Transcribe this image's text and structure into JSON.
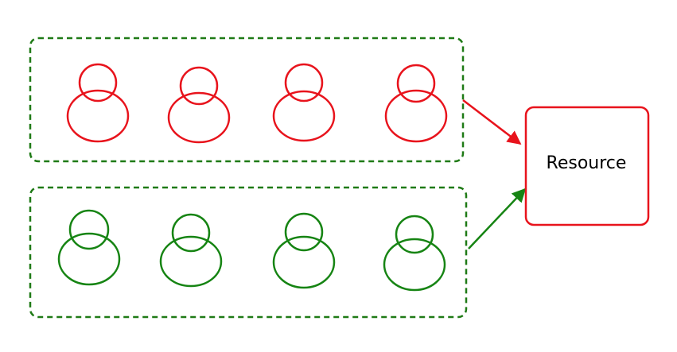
{
  "resource": {
    "label": "Resource"
  },
  "groups": [
    {
      "id": "top",
      "color": "#e8131c",
      "person_count": 4
    },
    {
      "id": "bottom",
      "color": "#168413",
      "person_count": 4
    }
  ],
  "colors": {
    "red": "#e8131c",
    "green": "#168413",
    "group_border": "#1f7a16",
    "background": "#ffffff"
  }
}
